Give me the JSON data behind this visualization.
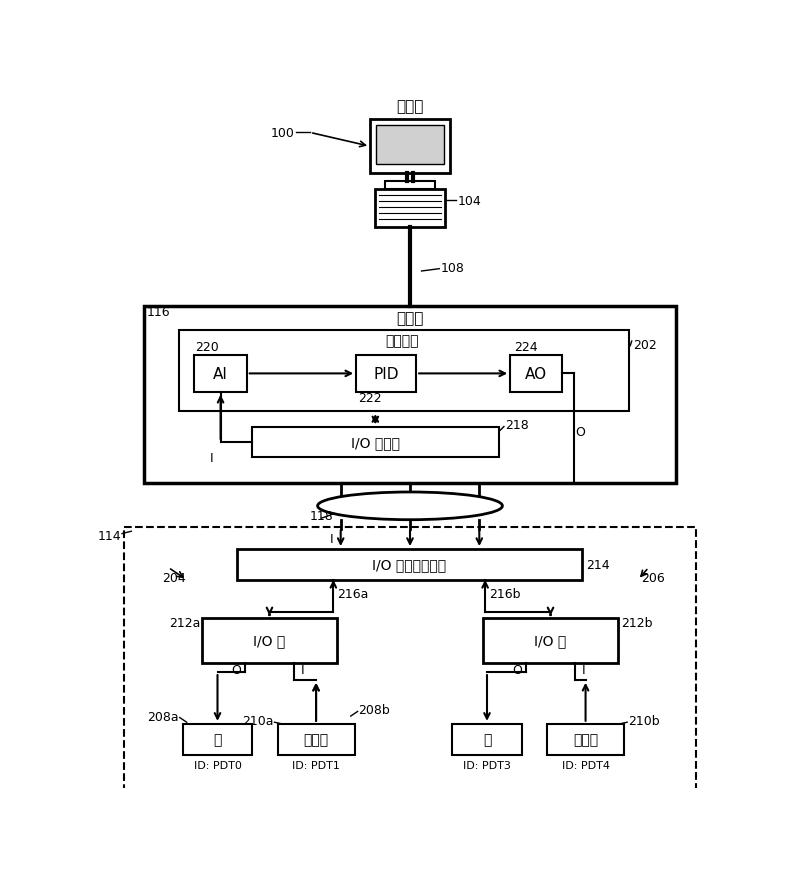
{
  "bg_color": "#ffffff",
  "fig_width": 8.0,
  "fig_height": 8.87,
  "labels": {
    "workstation": "工作站",
    "controller": "控制器",
    "control_loop": "控制回路",
    "io_scheduler": "I/O 调度器",
    "io_data_module": "I/O 数据采集模块",
    "io_card": "I/O 卡",
    "valve": "阀",
    "sensor": "传感器",
    "AI": "AI",
    "PID": "PID",
    "AO": "AO",
    "ref_100": "100",
    "ref_104": "104",
    "ref_108": "108",
    "ref_114": "114",
    "ref_116": "116",
    "ref_118": "118",
    "ref_202": "202",
    "ref_204": "204",
    "ref_206": "206",
    "ref_208a": "208a",
    "ref_208b": "208b",
    "ref_210a": "210a",
    "ref_210b": "210b",
    "ref_212a": "212a",
    "ref_212b": "212b",
    "ref_214": "214",
    "ref_216a": "216a",
    "ref_216b": "216b",
    "ref_218": "218",
    "ref_220": "220",
    "ref_222": "222",
    "ref_224": "224",
    "id_pdt0": "ID: PDT0",
    "id_pdt1": "ID: PDT1",
    "id_pdt3": "ID: PDT3",
    "id_pdt4": "ID: PDT4",
    "label_I": "I",
    "label_O": "O"
  }
}
